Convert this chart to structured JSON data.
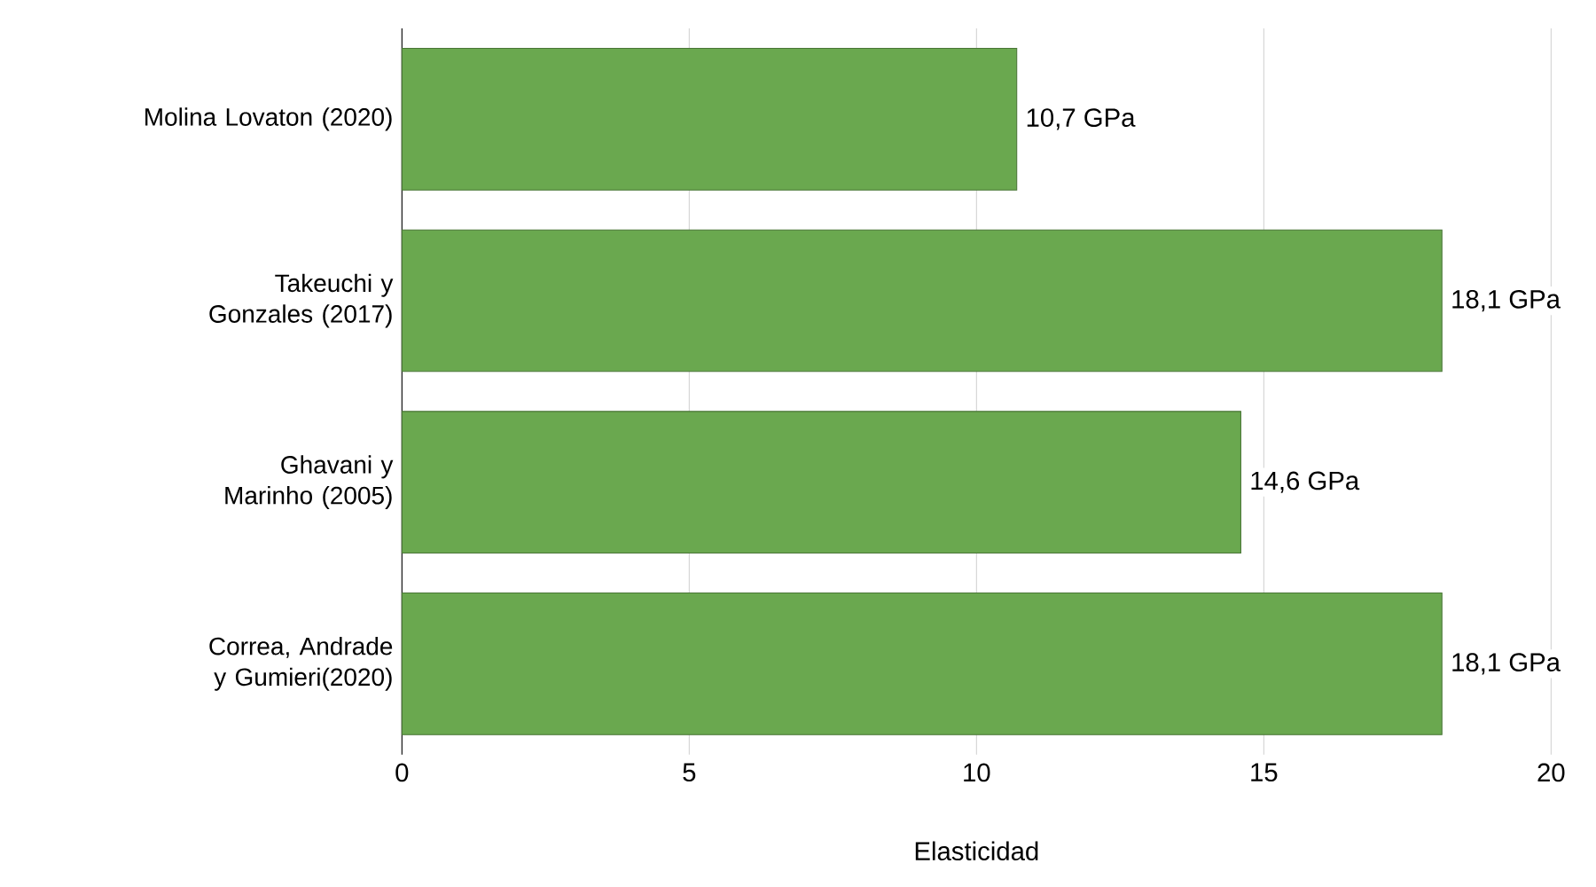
{
  "chart_data": {
    "type": "bar",
    "orientation": "horizontal",
    "xlabel": "Elasticidad",
    "categories": [
      "Molina Lovaton (2020)",
      "Takeuchi y Gonzales (2017)",
      "Ghavani y Marinho (2005)",
      "Correa, Andrade y Gumieri(2020)"
    ],
    "values": [
      10.7,
      18.1,
      14.6,
      18.1
    ],
    "value_labels": [
      "10,7 GPa",
      "18,1 GPa",
      "14,6 GPa",
      "18,1 GPa"
    ],
    "color": "#6aa84f",
    "xlim": [
      0,
      20
    ],
    "xticks": [
      0,
      5,
      10,
      15,
      20
    ],
    "grid": "x"
  }
}
